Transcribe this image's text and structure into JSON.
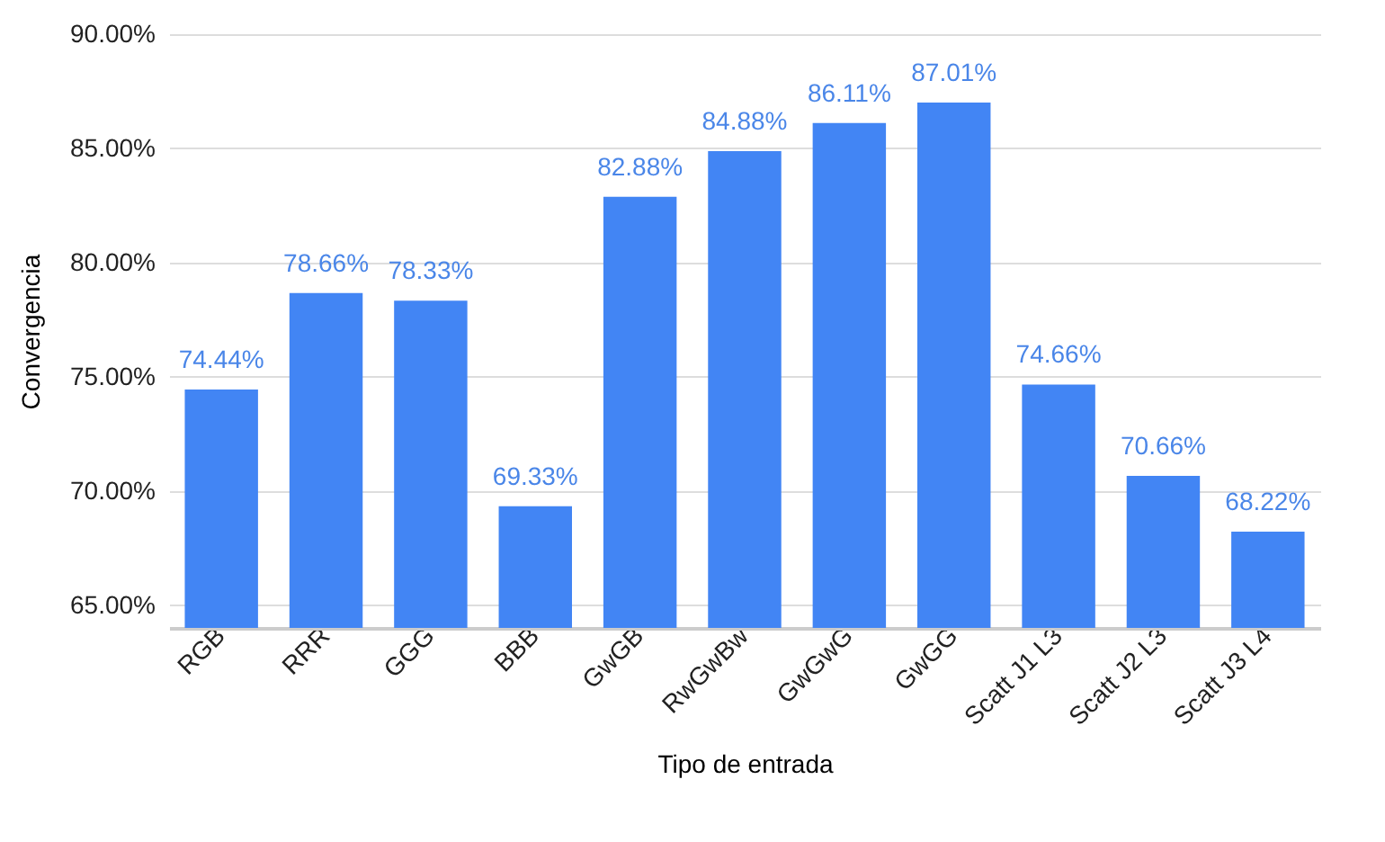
{
  "chart_data": {
    "type": "bar",
    "xlabel": "Tipo de entrada",
    "ylabel": "Convergencia",
    "categories": [
      "RGB",
      "RRR",
      "GGG",
      "BBB",
      "GwGB",
      "RwGwBw",
      "GwGwG",
      "GwGG",
      "Scatt J1  L3",
      "Scatt J2  L3",
      "Scatt J3  L4"
    ],
    "values": [
      74.44,
      78.66,
      78.33,
      69.33,
      82.88,
      84.88,
      86.11,
      87.01,
      74.66,
      70.66,
      68.22
    ],
    "value_labels": [
      "74.44%",
      "78.66%",
      "78.33%",
      "69.33%",
      "82.88%",
      "84.88%",
      "86.11%",
      "87.01%",
      "74.66%",
      "70.66%",
      "68.22%"
    ],
    "color": "#4285f4",
    "ylim": [
      64,
      90
    ],
    "yticks": [
      {
        "value": 65,
        "label": "65.00%"
      },
      {
        "value": 70,
        "label": "70.00%"
      },
      {
        "value": 75,
        "label": "75.00%"
      },
      {
        "value": 80,
        "label": "80.00%"
      },
      {
        "value": 85,
        "label": "85.00%"
      },
      {
        "value": 90,
        "label": "90.00%"
      }
    ],
    "grid": "y"
  }
}
